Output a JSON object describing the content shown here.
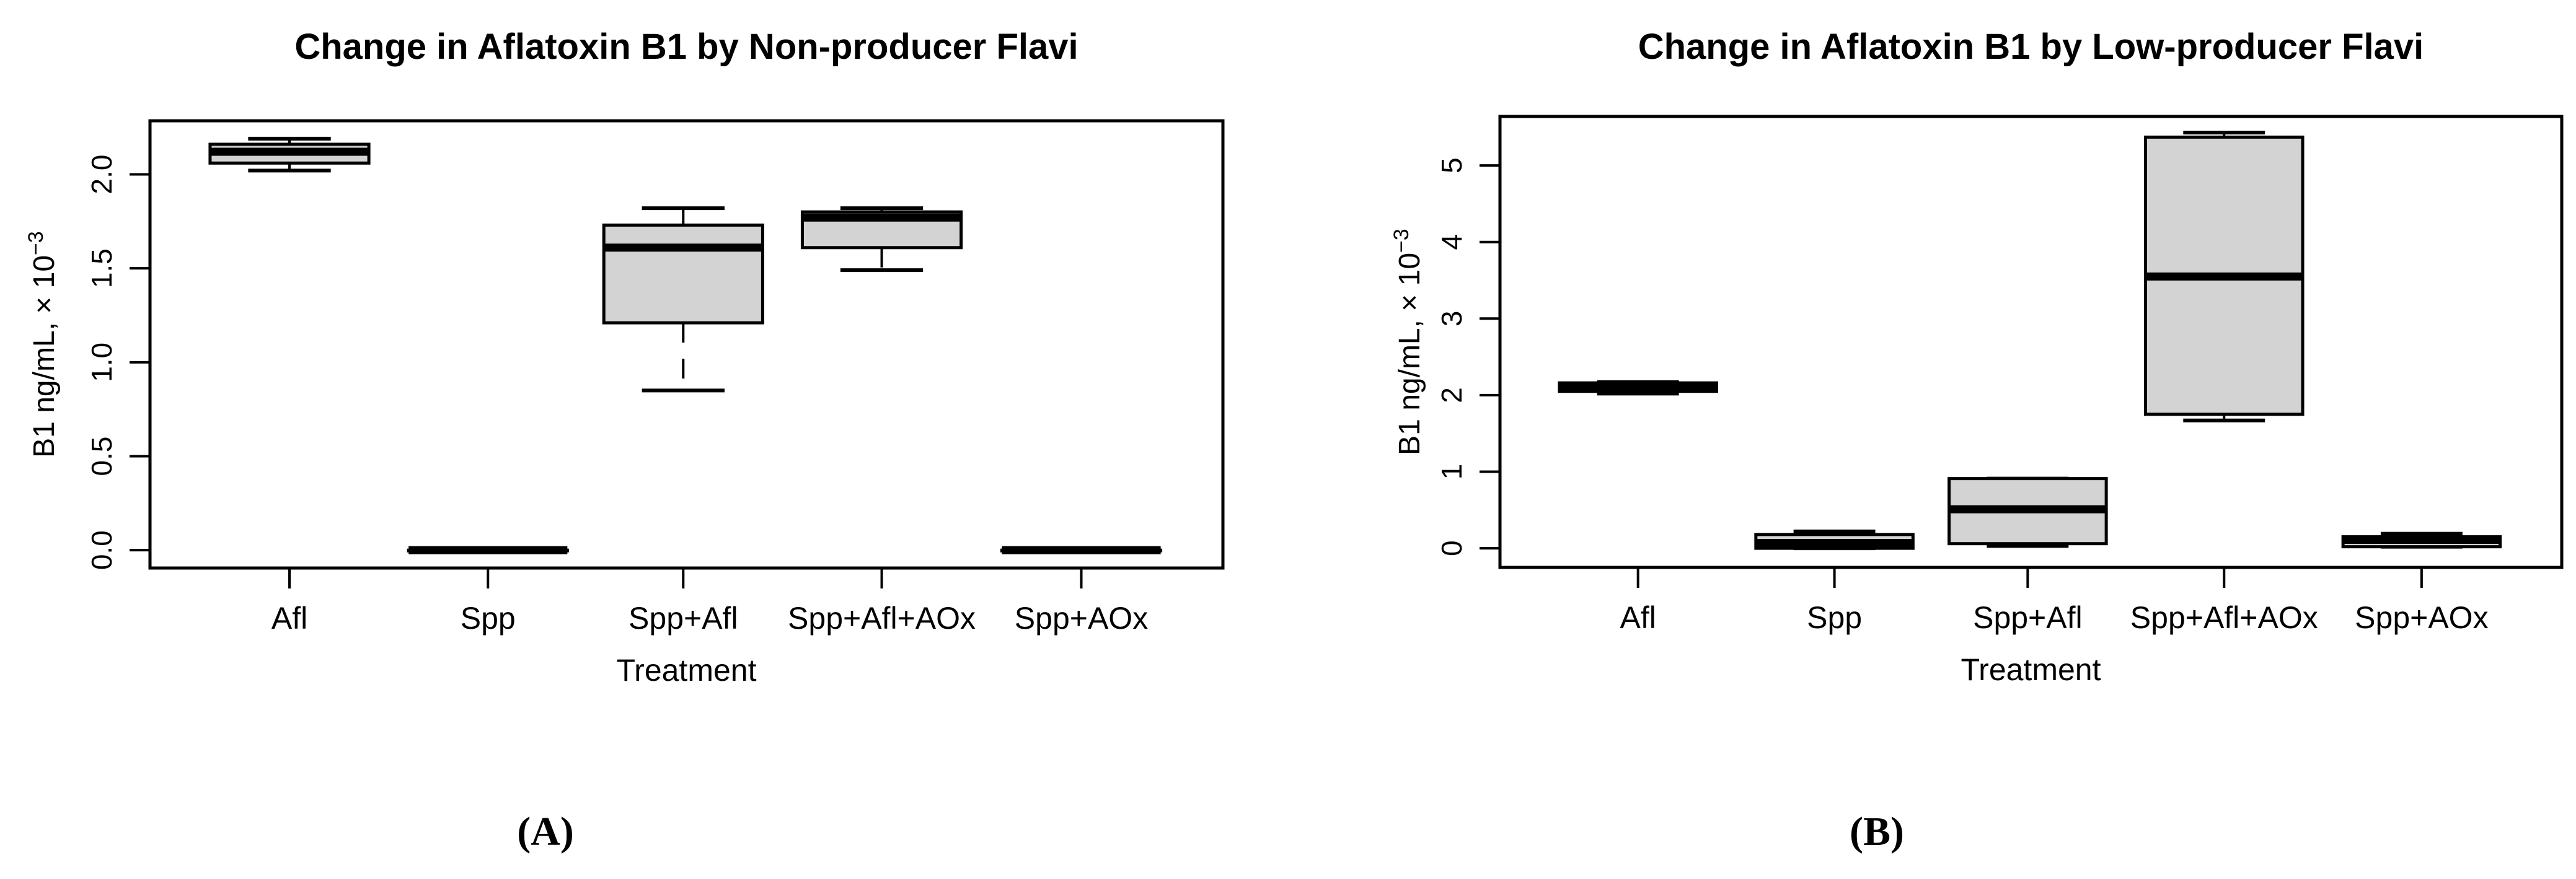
{
  "page": {
    "background": "#ffffff"
  },
  "colors": {
    "box_fill": "#d3d3d3",
    "line": "#000000",
    "text": "#000000"
  },
  "captions": {
    "a": "(A)",
    "b": "(B)"
  },
  "chart_data": [
    {
      "type": "boxplot",
      "panel": "A",
      "title": "Change in Aflatoxin B1 by Non-producer Flavi",
      "xlabel": "Treatment",
      "ylabel": "B1  ng/mL, × 10",
      "ylabel_exponent": "−3",
      "categories": [
        "Afl",
        "Spp",
        "Spp+Afl",
        "Spp+Afl+AOx",
        "Spp+AOx"
      ],
      "ylim": [
        -0.095,
        2.285
      ],
      "yticks": [
        {
          "value": 0.0,
          "label": "0.0"
        },
        {
          "value": 0.5,
          "label": "0.5"
        },
        {
          "value": 1.0,
          "label": "1.0"
        },
        {
          "value": 1.5,
          "label": "1.5"
        },
        {
          "value": 2.0,
          "label": "2.0"
        }
      ],
      "grid": false,
      "legend": null,
      "boxes": [
        {
          "category": "Afl",
          "whisker_low": 2.02,
          "q1": 2.06,
          "median": 2.12,
          "q3": 2.16,
          "whisker_high": 2.19
        },
        {
          "category": "Spp",
          "whisker_low": 0.0,
          "q1": 0.0,
          "median": 0.0,
          "q3": 0.0,
          "whisker_high": 0.0
        },
        {
          "category": "Spp+Afl",
          "whisker_low": 0.85,
          "q1": 1.21,
          "median": 1.61,
          "q3": 1.73,
          "whisker_high": 1.82
        },
        {
          "category": "Spp+Afl+AOx",
          "whisker_low": 1.49,
          "q1": 1.61,
          "median": 1.77,
          "q3": 1.8,
          "whisker_high": 1.82
        },
        {
          "category": "Spp+AOx",
          "whisker_low": 0.0,
          "q1": 0.0,
          "median": 0.0,
          "q3": 0.0,
          "whisker_high": 0.0
        }
      ]
    },
    {
      "type": "boxplot",
      "panel": "B",
      "title": "Change in Aflatoxin B1 by Low-producer Flavi",
      "xlabel": "Treatment",
      "ylabel": "B1  ng/mL, × 10",
      "ylabel_exponent": "−3",
      "categories": [
        "Afl",
        "Spp",
        "Spp+Afl",
        "Spp+Afl+AOx",
        "Spp+AOx"
      ],
      "ylim": [
        -0.25,
        5.64
      ],
      "yticks": [
        {
          "value": 0,
          "label": "0"
        },
        {
          "value": 1,
          "label": "1"
        },
        {
          "value": 2,
          "label": "2"
        },
        {
          "value": 3,
          "label": "3"
        },
        {
          "value": 4,
          "label": "4"
        },
        {
          "value": 5,
          "label": "5"
        }
      ],
      "grid": false,
      "legend": null,
      "boxes": [
        {
          "category": "Afl",
          "whisker_low": 2.02,
          "q1": 2.05,
          "median": 2.1,
          "q3": 2.16,
          "whisker_high": 2.17
        },
        {
          "category": "Spp",
          "whisker_low": 0.0,
          "q1": 0.0,
          "median": 0.07,
          "q3": 0.18,
          "whisker_high": 0.22
        },
        {
          "category": "Spp+Afl",
          "whisker_low": 0.03,
          "q1": 0.06,
          "median": 0.51,
          "q3": 0.91,
          "whisker_high": 0.91
        },
        {
          "category": "Spp+Afl+AOx",
          "whisker_low": 1.67,
          "q1": 1.75,
          "median": 3.55,
          "q3": 5.37,
          "whisker_high": 5.43
        },
        {
          "category": "Spp+AOx",
          "whisker_low": 0.02,
          "q1": 0.02,
          "median": 0.11,
          "q3": 0.15,
          "whisker_high": 0.19
        }
      ]
    }
  ]
}
